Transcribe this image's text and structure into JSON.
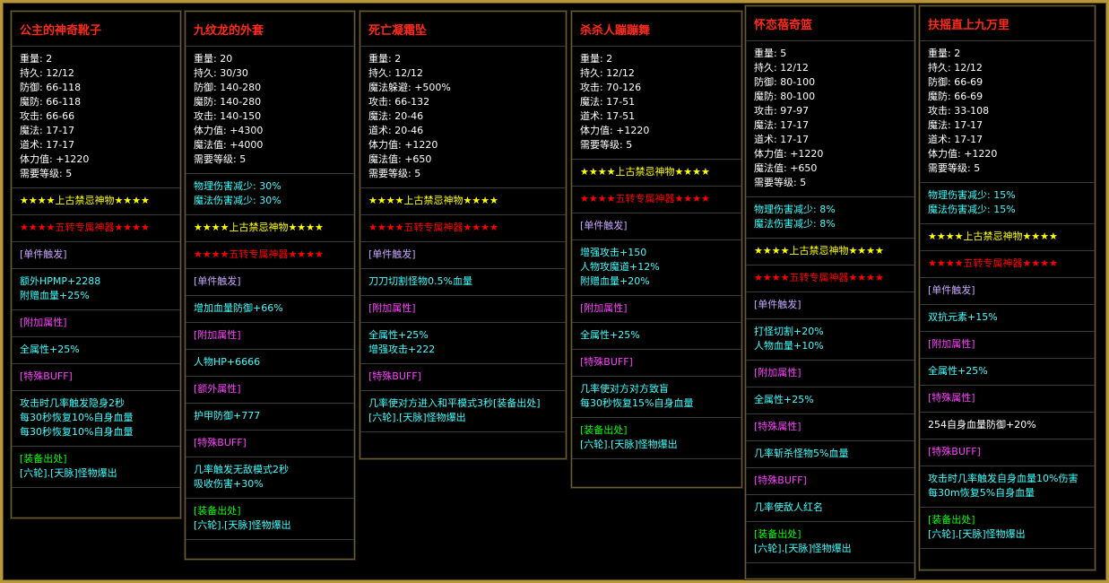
{
  "panels": [
    {
      "title": "公主的神奇靴子",
      "sections": [
        [
          {
            "text": "重量: 2",
            "color": "#ffffff"
          },
          {
            "text": "持久: 12/12",
            "color": "#ffffff"
          },
          {
            "text": "防御: 66-118",
            "color": "#ffffff"
          },
          {
            "text": "魔防: 66-118",
            "color": "#ffffff"
          },
          {
            "text": "攻击: 66-66",
            "color": "#ffffff"
          },
          {
            "text": "魔法: 17-17",
            "color": "#ffffff"
          },
          {
            "text": "道术: 17-17",
            "color": "#ffffff"
          },
          {
            "text": "体力值: +1220",
            "color": "#ffffff"
          },
          {
            "text": "需要等级: 5",
            "color": "#ffffff"
          }
        ],
        [
          {
            "text": "★★★★上古禁忌神物★★★★",
            "color": "#ffff00"
          }
        ],
        [
          {
            "text": "★★★★五转专属神器★★★★",
            "color": "#ff0000"
          }
        ],
        [
          {
            "text": "[单件触发]",
            "color": "#c8a8ff"
          }
        ],
        [
          {
            "text": "额外HPMP+2288",
            "color": "#40ffff"
          },
          {
            "text": "附赠血量+25%",
            "color": "#40ffff"
          }
        ],
        [
          {
            "text": "[附加属性]",
            "color": "#ff40ff"
          }
        ],
        [
          {
            "text": "全属性+25%",
            "color": "#40ffff"
          }
        ],
        [
          {
            "text": "[特殊BUFF]",
            "color": "#ff40ff"
          }
        ],
        [
          {
            "text": "攻击时几率触发隐身2秒",
            "color": "#40ffff"
          },
          {
            "text": "每30秒恢复10%自身血量",
            "color": "#40ffff"
          },
          {
            "text": "每30秒恢复10%自身血量",
            "color": "#40ffff"
          }
        ],
        [
          {
            "text": "[装备出处]",
            "color": "#00ff00"
          },
          {
            "text": "[六轮].[天脉]怪物爆出",
            "color": "#40ffff"
          }
        ]
      ]
    },
    {
      "title": "九纹龙的外套",
      "sections": [
        [
          {
            "text": "重量: 20",
            "color": "#ffffff"
          },
          {
            "text": "持久: 30/30",
            "color": "#ffffff"
          },
          {
            "text": "防御: 140-280",
            "color": "#ffffff"
          },
          {
            "text": "魔防: 140-280",
            "color": "#ffffff"
          },
          {
            "text": "攻击: 140-150",
            "color": "#ffffff"
          },
          {
            "text": "体力值: +4300",
            "color": "#ffffff"
          },
          {
            "text": "魔法值: +4000",
            "color": "#ffffff"
          },
          {
            "text": "需要等级: 5",
            "color": "#ffffff"
          }
        ],
        [
          {
            "text": "物理伤害减少: 30%",
            "color": "#40ffff"
          },
          {
            "text": "魔法伤害减少: 30%",
            "color": "#40ffff"
          }
        ],
        [
          {
            "text": "★★★★上古禁忌神物★★★★",
            "color": "#ffff00"
          }
        ],
        [
          {
            "text": "★★★★五转专属神器★★★★",
            "color": "#ff0000"
          }
        ],
        [
          {
            "text": "[单件触发]",
            "color": "#c8a8ff"
          }
        ],
        [
          {
            "text": "增加血量防御+66%",
            "color": "#40ffff"
          }
        ],
        [
          {
            "text": "[附加属性]",
            "color": "#ff40ff"
          }
        ],
        [
          {
            "text": "人物HP+6666",
            "color": "#40ffff"
          }
        ],
        [
          {
            "text": "[额外属性]",
            "color": "#ff40ff"
          }
        ],
        [
          {
            "text": "护甲防御+777",
            "color": "#40ffff"
          }
        ],
        [
          {
            "text": "[特殊BUFF]",
            "color": "#ff40ff"
          }
        ],
        [
          {
            "text": "几率触发无敌模式2秒",
            "color": "#40ffff"
          },
          {
            "text": "吸收伤害+30%",
            "color": "#40ffff"
          }
        ],
        [
          {
            "text": "[装备出处]",
            "color": "#00ff00"
          },
          {
            "text": "[六轮].[天脉]怪物爆出",
            "color": "#40ffff"
          }
        ]
      ]
    },
    {
      "title": "死亡凝霜坠",
      "sections": [
        [
          {
            "text": "重量: 2",
            "color": "#ffffff"
          },
          {
            "text": "持久: 12/12",
            "color": "#ffffff"
          },
          {
            "text": "魔法躲避: +500%",
            "color": "#ffffff"
          },
          {
            "text": "攻击: 66-132",
            "color": "#ffffff"
          },
          {
            "text": "魔法: 20-46",
            "color": "#ffffff"
          },
          {
            "text": "道术: 20-46",
            "color": "#ffffff"
          },
          {
            "text": "体力值: +1220",
            "color": "#ffffff"
          },
          {
            "text": "魔法值: +650",
            "color": "#ffffff"
          },
          {
            "text": "需要等级: 5",
            "color": "#ffffff"
          }
        ],
        [
          {
            "text": "★★★★上古禁忌神物★★★★",
            "color": "#ffff00"
          }
        ],
        [
          {
            "text": "★★★★五转专属神器★★★★",
            "color": "#ff0000"
          }
        ],
        [
          {
            "text": "[单件触发]",
            "color": "#c8a8ff"
          }
        ],
        [
          {
            "text": "刀刀切割怪物0.5%血量",
            "color": "#40ffff"
          }
        ],
        [
          {
            "text": "[附加属性]",
            "color": "#ff40ff"
          }
        ],
        [
          {
            "text": "全属性+25%",
            "color": "#40ffff"
          },
          {
            "text": "增强攻击+222",
            "color": "#40ffff"
          }
        ],
        [
          {
            "text": "[特殊BUFF]",
            "color": "#ff40ff"
          }
        ],
        [
          {
            "text": "几率使对方进入和平模式3秒[装备出处]",
            "color": "#40ffff"
          },
          {
            "text": "[六轮].[天脉]怪物爆出",
            "color": "#40ffff"
          }
        ]
      ]
    },
    {
      "title": "杀杀人蹦蹦舞",
      "sections": [
        [
          {
            "text": "重量: 2",
            "color": "#ffffff"
          },
          {
            "text": "持久: 12/12",
            "color": "#ffffff"
          },
          {
            "text": "攻击: 70-126",
            "color": "#ffffff"
          },
          {
            "text": "魔法: 17-51",
            "color": "#ffffff"
          },
          {
            "text": "道术: 17-51",
            "color": "#ffffff"
          },
          {
            "text": "体力值: +1220",
            "color": "#ffffff"
          },
          {
            "text": "需要等级: 5",
            "color": "#ffffff"
          }
        ],
        [
          {
            "text": "★★★★上古禁忌神物★★★★",
            "color": "#ffff00"
          }
        ],
        [
          {
            "text": "★★★★五转专属神器★★★★",
            "color": "#ff0000"
          }
        ],
        [
          {
            "text": "[单件触发]",
            "color": "#c8a8ff"
          }
        ],
        [
          {
            "text": "增强攻击+150",
            "color": "#40ffff"
          },
          {
            "text": "人物攻魔道+12%",
            "color": "#40ffff"
          },
          {
            "text": "附赠血量+20%",
            "color": "#40ffff"
          }
        ],
        [
          {
            "text": "[附加属性]",
            "color": "#ff40ff"
          }
        ],
        [
          {
            "text": "全属性+25%",
            "color": "#40ffff"
          }
        ],
        [
          {
            "text": "[特殊BUFF]",
            "color": "#ff40ff"
          }
        ],
        [
          {
            "text": "几率使对方对方致盲",
            "color": "#40ffff"
          },
          {
            "text": "每30秒恢复15%自身血量",
            "color": "#40ffff"
          }
        ],
        [
          {
            "text": "[装备出处]",
            "color": "#00ff00"
          },
          {
            "text": "[六轮].[天脉]怪物爆出",
            "color": "#40ffff"
          }
        ]
      ]
    },
    {
      "title": "怀恋蓓奇篮",
      "sections": [
        [
          {
            "text": "重量: 5",
            "color": "#ffffff"
          },
          {
            "text": "持久: 12/12",
            "color": "#ffffff"
          },
          {
            "text": "防御: 80-100",
            "color": "#ffffff"
          },
          {
            "text": "魔防: 80-100",
            "color": "#ffffff"
          },
          {
            "text": "攻击: 97-97",
            "color": "#ffffff"
          },
          {
            "text": "魔法: 17-17",
            "color": "#ffffff"
          },
          {
            "text": "道术: 17-17",
            "color": "#ffffff"
          },
          {
            "text": "体力值: +1220",
            "color": "#ffffff"
          },
          {
            "text": "魔法值: +650",
            "color": "#ffffff"
          },
          {
            "text": "需要等级: 5",
            "color": "#ffffff"
          }
        ],
        [
          {
            "text": "物理伤害减少: 8%",
            "color": "#40ffff"
          },
          {
            "text": "魔法伤害减少: 8%",
            "color": "#40ffff"
          }
        ],
        [
          {
            "text": "★★★★上古禁忌神物★★★★",
            "color": "#ffff00"
          }
        ],
        [
          {
            "text": "★★★★五转专属神器★★★★",
            "color": "#ff0000"
          }
        ],
        [
          {
            "text": "[单件触发]",
            "color": "#c8a8ff"
          }
        ],
        [
          {
            "text": "打怪切割+20%",
            "color": "#40ffff"
          },
          {
            "text": "人物血量+10%",
            "color": "#40ffff"
          }
        ],
        [
          {
            "text": "[附加属性]",
            "color": "#ff40ff"
          }
        ],
        [
          {
            "text": "全属性+25%",
            "color": "#40ffff"
          }
        ],
        [
          {
            "text": "[特殊属性]",
            "color": "#ff40ff"
          }
        ],
        [
          {
            "text": "几率斩杀怪物5%血量",
            "color": "#40ffff"
          }
        ],
        [
          {
            "text": "[特殊BUFF]",
            "color": "#ff40ff"
          }
        ],
        [
          {
            "text": "几率使敌人红名",
            "color": "#40ffff"
          }
        ],
        [
          {
            "text": "[装备出处]",
            "color": "#00ff00"
          },
          {
            "text": "[六轮].[天脉]怪物爆出",
            "color": "#40ffff"
          }
        ]
      ]
    },
    {
      "title": "扶摇直上九万里",
      "sections": [
        [
          {
            "text": "重量: 2",
            "color": "#ffffff"
          },
          {
            "text": "持久: 12/12",
            "color": "#ffffff"
          },
          {
            "text": "防御: 66-69",
            "color": "#ffffff"
          },
          {
            "text": "魔防: 66-69",
            "color": "#ffffff"
          },
          {
            "text": "攻击: 33-108",
            "color": "#ffffff"
          },
          {
            "text": "魔法: 17-17",
            "color": "#ffffff"
          },
          {
            "text": "道术: 17-17",
            "color": "#ffffff"
          },
          {
            "text": "体力值: +1220",
            "color": "#ffffff"
          },
          {
            "text": "需要等级: 5",
            "color": "#ffffff"
          }
        ],
        [
          {
            "text": "物理伤害减少: 15%",
            "color": "#40ffff"
          },
          {
            "text": "魔法伤害减少: 15%",
            "color": "#40ffff"
          }
        ],
        [
          {
            "text": "★★★★上古禁忌神物★★★★",
            "color": "#ffff00"
          }
        ],
        [
          {
            "text": "★★★★五转专属神器★★★★",
            "color": "#ff0000"
          }
        ],
        [
          {
            "text": "[单件触发]",
            "color": "#c8a8ff"
          }
        ],
        [
          {
            "text": "双抗元素+15%",
            "color": "#40ffff"
          }
        ],
        [
          {
            "text": "[附加属性]",
            "color": "#ff40ff"
          }
        ],
        [
          {
            "text": "全属性+25%",
            "color": "#40ffff"
          }
        ],
        [
          {
            "text": "[特殊属性]",
            "color": "#ff40ff"
          }
        ],
        [
          {
            "text": "254自身血量防御+20%",
            "color": "#ffffff"
          }
        ],
        [
          {
            "text": "[特殊BUFF]",
            "color": "#ff40ff"
          }
        ],
        [
          {
            "text": "攻击时几率触发自身血量10%伤害",
            "color": "#40ffff"
          },
          {
            "text": "每30m恢复5%自身血量",
            "color": "#40ffff"
          }
        ],
        [
          {
            "text": "[装备出处]",
            "color": "#00ff00"
          },
          {
            "text": "[六轮].[天脉]怪物爆出",
            "color": "#40ffff"
          }
        ]
      ]
    }
  ]
}
